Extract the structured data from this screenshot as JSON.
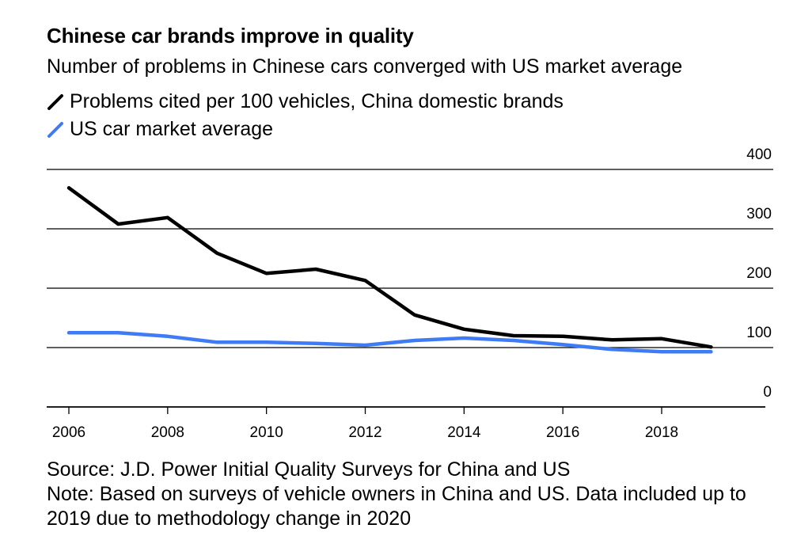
{
  "chart_data": {
    "type": "line",
    "title": "Chinese car brands improve in quality",
    "subtitle": "Number of problems in Chinese cars converged with US market average",
    "xlabel": "",
    "ylabel": "",
    "x": [
      2006,
      2007,
      2008,
      2009,
      2010,
      2011,
      2012,
      2013,
      2014,
      2015,
      2016,
      2017,
      2018,
      2019
    ],
    "xticks": [
      "2006",
      "2008",
      "2010",
      "2012",
      "2014",
      "2016",
      "2018"
    ],
    "xtick_values": [
      2006,
      2008,
      2010,
      2012,
      2014,
      2016,
      2018
    ],
    "xlim": [
      2005.6,
      2020.1
    ],
    "ylim": [
      0,
      400
    ],
    "yticks": [
      "0",
      "100",
      "200",
      "300",
      "400"
    ],
    "ytick_values": [
      0,
      100,
      200,
      300,
      400
    ],
    "grid": true,
    "legend_placement": "top-left",
    "series": [
      {
        "name": "Problems cited per 100 vehicles, China domestic brands",
        "color": "#000000",
        "values": [
          369,
          308,
          319,
          259,
          225,
          232,
          213,
          155,
          131,
          120,
          119,
          113,
          115,
          101
        ]
      },
      {
        "name": "US car market average",
        "color": "#3f7bf5",
        "values": [
          125,
          125,
          119,
          109,
          109,
          107,
          104,
          112,
          116,
          112,
          105,
          97,
          93,
          93
        ]
      }
    ],
    "source": "Source: J.D. Power Initial Quality Surveys for China and US",
    "note": "Note: Based on surveys of vehicle owners in China and US. Data included up to 2019 due to methodology change in 2020"
  }
}
